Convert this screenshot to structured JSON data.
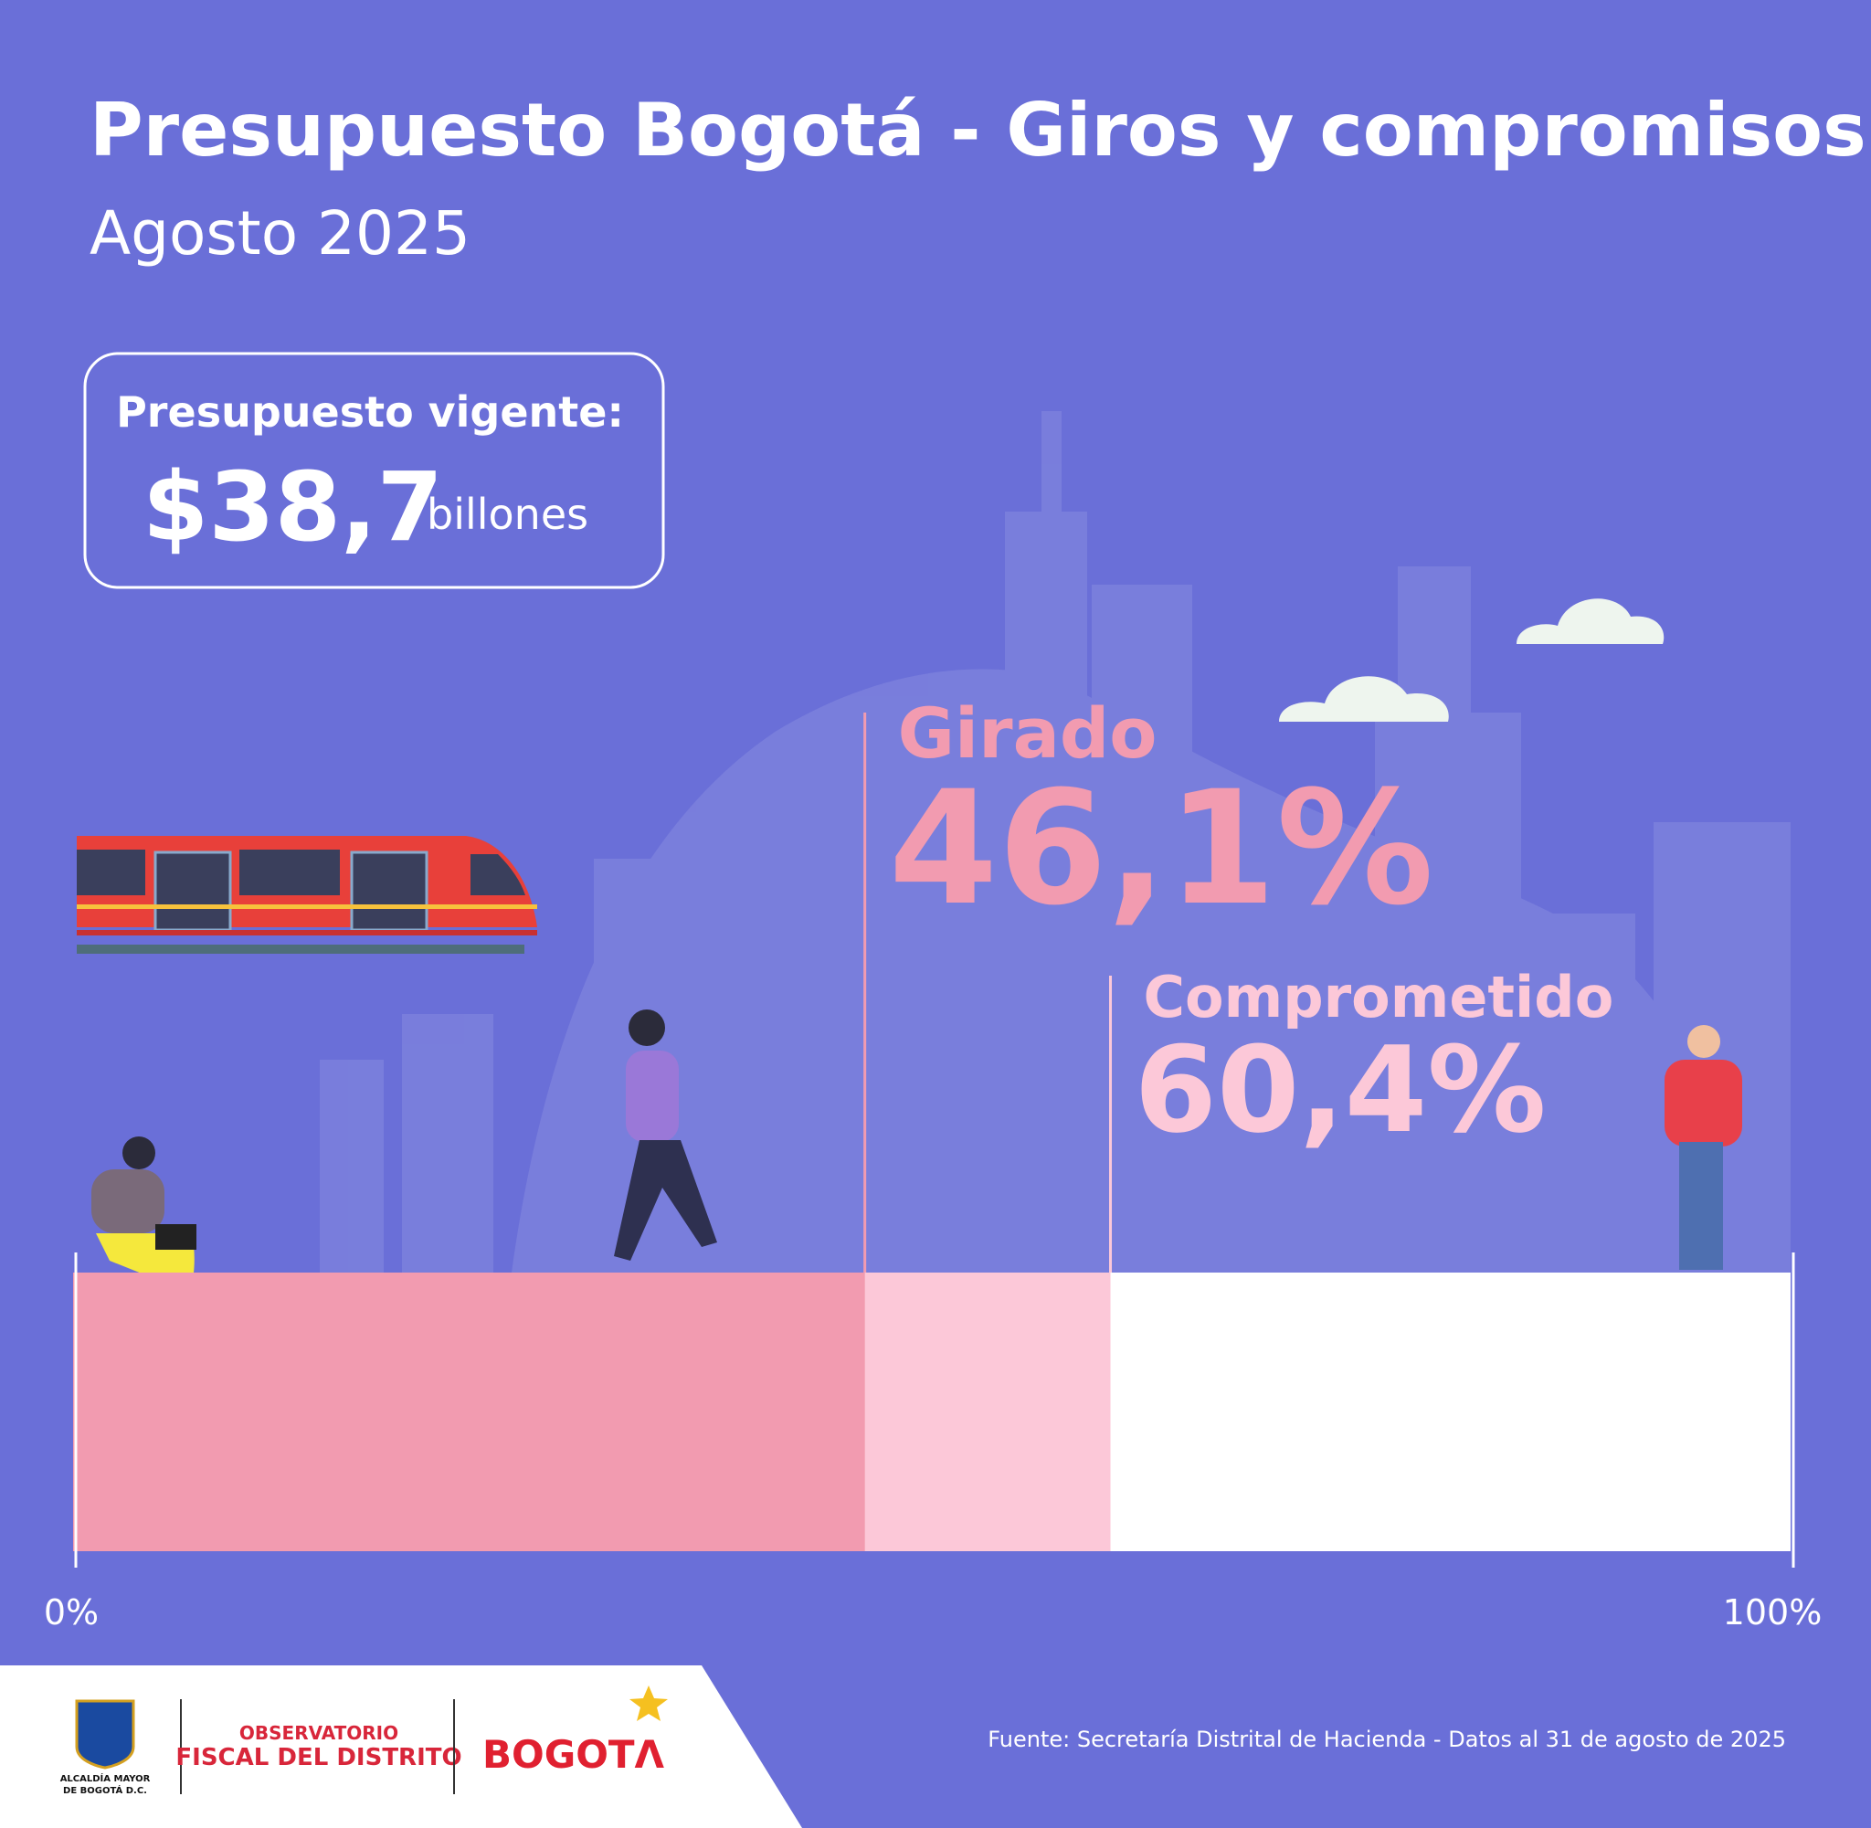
{
  "chart_data": {
    "type": "progress",
    "title": "Presupuesto Bogotá - Giros y compromisos",
    "subtitle": "Agosto 2025",
    "budget": {
      "label": "Presupuesto vigente:",
      "amount": "$38,7",
      "unit": "billones"
    },
    "xlim": [
      0,
      100
    ],
    "xticks": [
      {
        "value": 0,
        "label": "0%"
      },
      {
        "value": 100,
        "label": "100%"
      }
    ],
    "track_color": "#ffffff",
    "series": [
      {
        "name": "Comprometido",
        "color": "#fcc8d8",
        "value": 60.4,
        "value_label": "60,4%"
      },
      {
        "name": "Girado",
        "color": "#f29bb0",
        "value": 46.1,
        "value_label": "46,1%"
      }
    ],
    "source": "Fuente: Secretaría Distrital de Hacienda - Datos al 31 de agosto de 2025"
  },
  "footer": {
    "alcaldia": [
      "ALCALDÍA MAYOR",
      "DE BOGOTÁ D.C."
    ],
    "observatorio": [
      "OBSERVATORIO",
      "FISCAL DEL DISTRITO"
    ],
    "bogota": "BOGOTΛ"
  }
}
